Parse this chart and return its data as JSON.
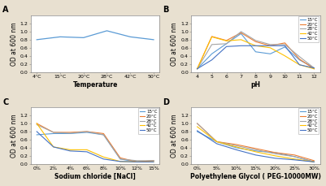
{
  "fig_facecolor": "#e8e0d0",
  "panel_A": {
    "x_labels": [
      "4°C",
      "15°C",
      "20°C",
      "28°C",
      "42°C",
      "50°C"
    ],
    "x_vals": [
      0,
      1,
      2,
      3,
      4,
      5
    ],
    "y_vals": [
      0.8,
      0.87,
      0.85,
      1.02,
      0.87,
      0.8
    ],
    "color": "#5b9bd5",
    "xlabel": "Temperature",
    "ylabel": "OD at 600 nm",
    "ylim": [
      0,
      1.4
    ],
    "yticks": [
      0,
      0.2,
      0.4,
      0.6,
      0.8,
      1.0,
      1.2
    ]
  },
  "panel_B": {
    "x_vals": [
      4,
      5,
      6,
      7,
      8,
      9,
      10,
      11,
      12
    ],
    "series": {
      "15°C": [
        0.08,
        0.45,
        0.7,
        0.95,
        0.5,
        0.45,
        0.62,
        0.3,
        0.1
      ],
      "20°C": [
        0.08,
        0.88,
        0.78,
        0.97,
        0.75,
        0.65,
        0.72,
        0.32,
        0.08
      ],
      "28°C": [
        0.08,
        0.68,
        0.7,
        1.0,
        0.78,
        0.68,
        0.68,
        0.38,
        0.1
      ],
      "42°C": [
        0.08,
        0.87,
        0.77,
        0.8,
        0.65,
        0.6,
        0.4,
        0.18,
        0.08
      ],
      "50°C": [
        0.08,
        0.3,
        0.63,
        0.65,
        0.65,
        0.65,
        0.65,
        0.18,
        0.1
      ]
    },
    "colors": {
      "15°C": "#5b9bd5",
      "20°C": "#ed7d31",
      "28°C": "#a5a5a5",
      "42°C": "#ffc000",
      "50°C": "#4472c4"
    },
    "xlabel": "pH",
    "ylabel": "OD at 600 nm",
    "ylim": [
      0,
      1.4
    ],
    "yticks": [
      0,
      0.2,
      0.4,
      0.6,
      0.8,
      1.0,
      1.2
    ]
  },
  "panel_C": {
    "x_labels": [
      "0%",
      "2%",
      "4%",
      "6%",
      "8%",
      "10%",
      "12%",
      "15%"
    ],
    "x_vals": [
      0,
      1,
      2,
      3,
      4,
      5,
      6,
      7
    ],
    "series": {
      "15°C": [
        0.72,
        0.75,
        0.75,
        0.78,
        0.72,
        0.12,
        0.05,
        0.08
      ],
      "20°C": [
        1.0,
        0.78,
        0.78,
        0.8,
        0.75,
        0.15,
        0.05,
        0.08
      ],
      "28°C": [
        0.97,
        0.78,
        0.76,
        0.8,
        0.72,
        0.12,
        0.08,
        0.08
      ],
      "42°C": [
        1.0,
        0.42,
        0.35,
        0.35,
        0.17,
        0.06,
        0.05,
        0.05
      ],
      "50°C": [
        0.8,
        0.42,
        0.32,
        0.3,
        0.12,
        0.06,
        0.05,
        0.05
      ]
    },
    "colors": {
      "15°C": "#5b9bd5",
      "20°C": "#ed7d31",
      "28°C": "#a5a5a5",
      "42°C": "#ffc000",
      "50°C": "#4472c4"
    },
    "xlabel": "Sodium chloride [NaCl]",
    "ylabel": "OD at 600 nm",
    "ylim": [
      0,
      1.4
    ],
    "yticks": [
      0,
      0.2,
      0.4,
      0.6,
      0.8,
      1.0,
      1.2
    ]
  },
  "panel_D": {
    "x_labels": [
      "0%",
      "5%",
      "10%",
      "15%",
      "20%",
      "25%",
      "30%"
    ],
    "x_vals": [
      0,
      1,
      2,
      3,
      4,
      5,
      6
    ],
    "series": {
      "15°C": [
        0.8,
        0.55,
        0.4,
        0.32,
        0.28,
        0.18,
        0.05
      ],
      "20°C": [
        1.0,
        0.55,
        0.48,
        0.38,
        0.28,
        0.22,
        0.08
      ],
      "28°C": [
        1.0,
        0.55,
        0.45,
        0.35,
        0.25,
        0.18,
        0.05
      ],
      "42°C": [
        0.92,
        0.55,
        0.42,
        0.3,
        0.2,
        0.12,
        0.05
      ],
      "50°C": [
        0.82,
        0.5,
        0.35,
        0.22,
        0.14,
        0.1,
        0.05
      ]
    },
    "colors": {
      "15°C": "#5b9bd5",
      "20°C": "#ed7d31",
      "28°C": "#a5a5a5",
      "42°C": "#ffc000",
      "50°C": "#4472c4"
    },
    "xlabel": "Polyethylene Glycol ( PEG-10000MW)",
    "ylabel": "OD at 600 nm",
    "ylim": [
      0,
      1.4
    ],
    "yticks": [
      0,
      0.2,
      0.4,
      0.6,
      0.8,
      1.0,
      1.2
    ]
  },
  "legend_labels": [
    "15°C",
    "20°C",
    "28°C",
    "42°C",
    "50°C"
  ],
  "legend_colors": [
    "#5b9bd5",
    "#ed7d31",
    "#a5a5a5",
    "#ffc000",
    "#4472c4"
  ]
}
